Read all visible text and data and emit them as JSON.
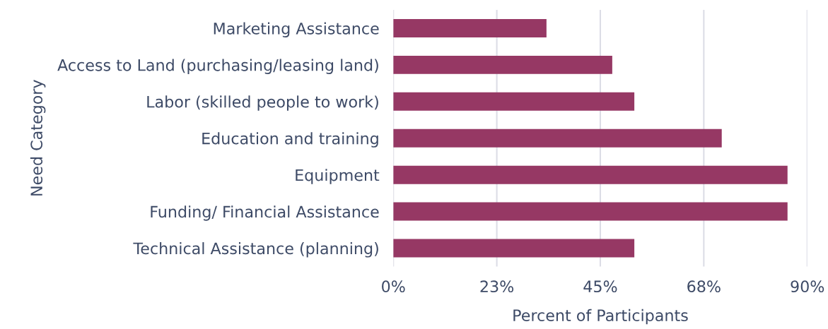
{
  "chart_data": {
    "type": "bar",
    "orientation": "horizontal",
    "xlabel": "Percent of Participants",
    "ylabel": "Need Category",
    "categories": [
      "Marketing Assistance",
      "Access to Land (purchasing/leasing land)",
      "Labor (skilled people to work)",
      "Education and training",
      "Equipment",
      "Funding/ Financial Assistance",
      "Technical Assistance (planning)"
    ],
    "values": [
      33.3,
      47.6,
      52.4,
      71.4,
      85.7,
      85.7,
      52.4
    ],
    "color": "#963864",
    "xlim": [
      0,
      90
    ],
    "xticks": [
      {
        "value": 0,
        "label": "0%"
      },
      {
        "value": 22.5,
        "label": "23%"
      },
      {
        "value": 45,
        "label": "45%"
      },
      {
        "value": 67.5,
        "label": "68%"
      },
      {
        "value": 90,
        "label": "90%"
      }
    ],
    "grid": "x"
  }
}
